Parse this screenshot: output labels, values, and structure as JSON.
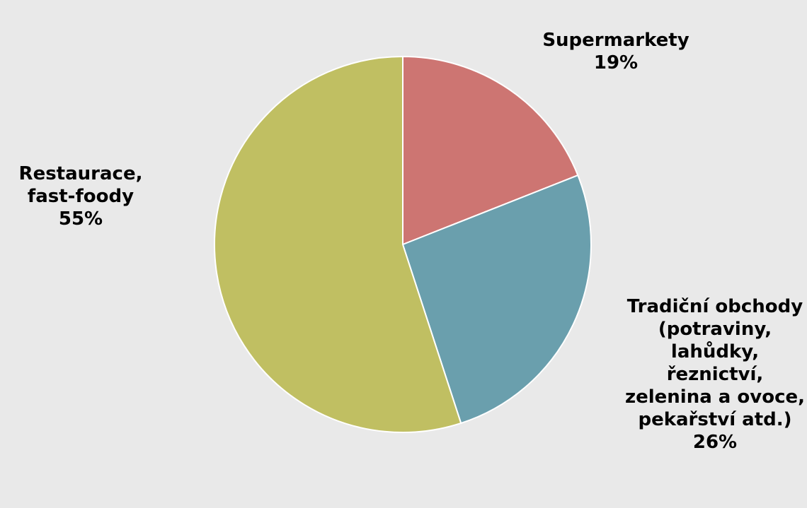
{
  "chart_data": {
    "type": "pie",
    "slices": [
      {
        "label": "Supermarkety",
        "value": 19,
        "value_label": "19%",
        "color": "#cd7572"
      },
      {
        "label": "Tradiční obchody (potraviny, lahůdky, řeznictví, zelenina a ovoce, pekařství atd.)",
        "value": 26,
        "value_label": "26%",
        "color": "#6a9fad"
      },
      {
        "label": "Restaurace, fast-foody",
        "value": 55,
        "value_label": "55%",
        "color": "#c0bf62"
      }
    ],
    "start_angle_deg": 0,
    "direction": "clockwise",
    "legend": "none"
  },
  "colors": {
    "background": "#e9e9e9",
    "slice_border": "#ffffff"
  }
}
